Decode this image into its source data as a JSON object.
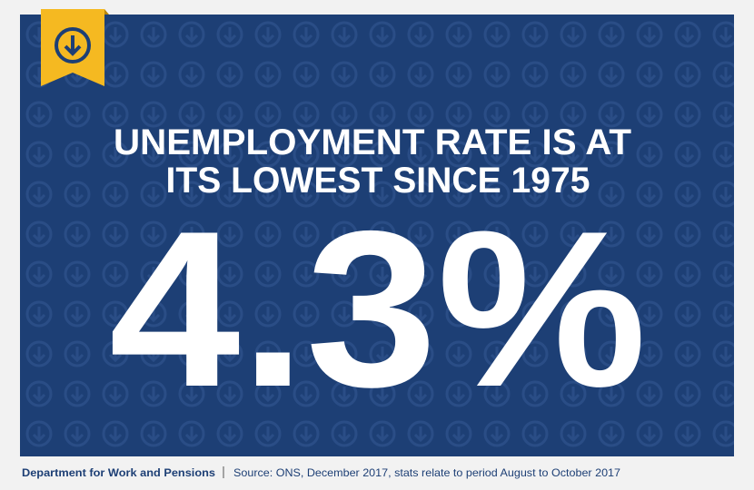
{
  "headline": {
    "line1": "UNEMPLOYMENT RATE IS AT",
    "line2": "ITS LOWEST SINCE 1975"
  },
  "figure": "4.3%",
  "footer": {
    "organisation": "Department for Work and Pensions",
    "source": "Source: ONS, December 2017, stats relate to period August to October 2017"
  }
}
